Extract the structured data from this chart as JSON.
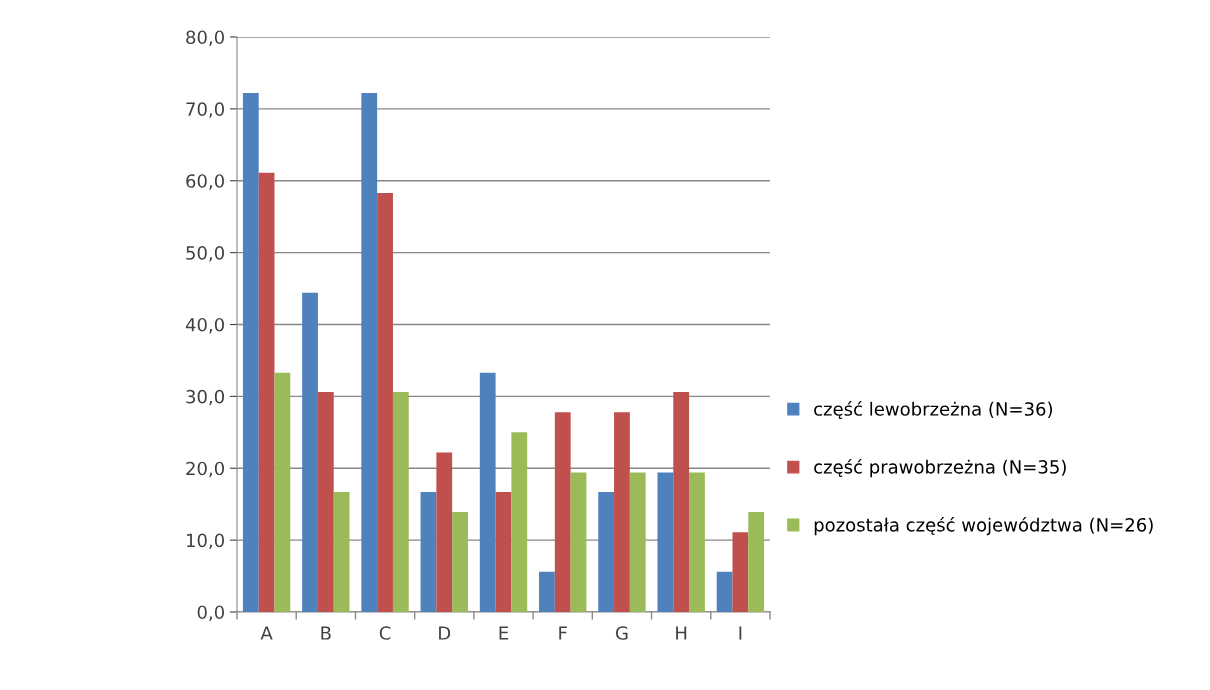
{
  "chart_data": {
    "type": "bar",
    "categories": [
      "A",
      "B",
      "C",
      "D",
      "E",
      "F",
      "G",
      "H",
      "I"
    ],
    "series": [
      {
        "name": "część lewobrzeżna (N=36)",
        "color": "#4f81bd",
        "values": [
          72.2,
          44.4,
          72.2,
          16.7,
          33.3,
          5.6,
          16.7,
          19.4,
          5.6
        ]
      },
      {
        "name": "część prawobrzeżna (N=35)",
        "color": "#c0504d",
        "values": [
          61.1,
          30.6,
          58.3,
          22.2,
          16.7,
          27.8,
          27.8,
          30.6,
          11.1
        ]
      },
      {
        "name": "pozostała część województwa (N=26)",
        "color": "#9bbb59",
        "values": [
          33.3,
          16.7,
          30.6,
          13.9,
          25.0,
          19.4,
          19.4,
          19.4,
          13.9
        ]
      }
    ],
    "ylim": [
      0,
      80
    ],
    "yticks": [
      {
        "value": 0,
        "label": "0,0"
      },
      {
        "value": 10,
        "label": "10,0"
      },
      {
        "value": 20,
        "label": "20,0"
      },
      {
        "value": 30,
        "label": "30,0"
      },
      {
        "value": 40,
        "label": "40,0"
      },
      {
        "value": 50,
        "label": "50,0"
      },
      {
        "value": 60,
        "label": "60,0"
      },
      {
        "value": 70,
        "label": "70,0"
      },
      {
        "value": 80,
        "label": "80,0"
      }
    ],
    "grid": "y",
    "legend": "right"
  }
}
